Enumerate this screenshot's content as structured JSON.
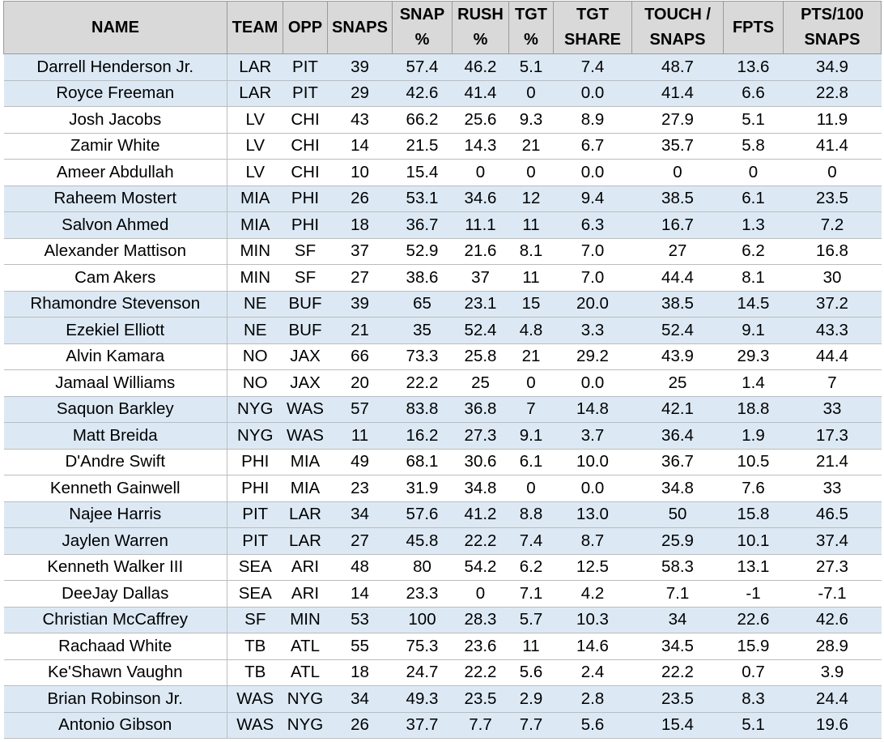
{
  "headers": [
    {
      "l1": "NAME",
      "l2": ""
    },
    {
      "l1": "TEAM",
      "l2": ""
    },
    {
      "l1": "OPP",
      "l2": ""
    },
    {
      "l1": "SNAPS",
      "l2": ""
    },
    {
      "l1": "SNAP",
      "l2": "%"
    },
    {
      "l1": "RUSH",
      "l2": "%"
    },
    {
      "l1": "TGT",
      "l2": "%"
    },
    {
      "l1": "TGT",
      "l2": "SHARE"
    },
    {
      "l1": "TOUCH /",
      "l2": "SNAPS"
    },
    {
      "l1": "FPTS",
      "l2": ""
    },
    {
      "l1": "PTS/100",
      "l2": "SNAPS"
    }
  ],
  "rows": [
    {
      "name": "Darrell Henderson Jr.",
      "team": "LAR",
      "opp": "PIT",
      "snaps": "39",
      "snap_pct": "57.4",
      "rush_pct": "46.2",
      "tgt_pct": "5.1",
      "tgt_share": "7.4",
      "touch_snaps": "48.7",
      "fpts": "13.6",
      "pts100": "34.9",
      "shaded": true
    },
    {
      "name": "Royce Freeman",
      "team": "LAR",
      "opp": "PIT",
      "snaps": "29",
      "snap_pct": "42.6",
      "rush_pct": "41.4",
      "tgt_pct": "0",
      "tgt_share": "0.0",
      "touch_snaps": "41.4",
      "fpts": "6.6",
      "pts100": "22.8",
      "shaded": true
    },
    {
      "name": "Josh Jacobs",
      "team": "LV",
      "opp": "CHI",
      "snaps": "43",
      "snap_pct": "66.2",
      "rush_pct": "25.6",
      "tgt_pct": "9.3",
      "tgt_share": "8.9",
      "touch_snaps": "27.9",
      "fpts": "5.1",
      "pts100": "11.9",
      "shaded": false
    },
    {
      "name": "Zamir White",
      "team": "LV",
      "opp": "CHI",
      "snaps": "14",
      "snap_pct": "21.5",
      "rush_pct": "14.3",
      "tgt_pct": "21",
      "tgt_share": "6.7",
      "touch_snaps": "35.7",
      "fpts": "5.8",
      "pts100": "41.4",
      "shaded": false
    },
    {
      "name": "Ameer Abdullah",
      "team": "LV",
      "opp": "CHI",
      "snaps": "10",
      "snap_pct": "15.4",
      "rush_pct": "0",
      "tgt_pct": "0",
      "tgt_share": "0.0",
      "touch_snaps": "0",
      "fpts": "0",
      "pts100": "0",
      "shaded": false
    },
    {
      "name": "Raheem Mostert",
      "team": "MIA",
      "opp": "PHI",
      "snaps": "26",
      "snap_pct": "53.1",
      "rush_pct": "34.6",
      "tgt_pct": "12",
      "tgt_share": "9.4",
      "touch_snaps": "38.5",
      "fpts": "6.1",
      "pts100": "23.5",
      "shaded": true
    },
    {
      "name": "Salvon Ahmed",
      "team": "MIA",
      "opp": "PHI",
      "snaps": "18",
      "snap_pct": "36.7",
      "rush_pct": "11.1",
      "tgt_pct": "11",
      "tgt_share": "6.3",
      "touch_snaps": "16.7",
      "fpts": "1.3",
      "pts100": "7.2",
      "shaded": true
    },
    {
      "name": "Alexander Mattison",
      "team": "MIN",
      "opp": "SF",
      "snaps": "37",
      "snap_pct": "52.9",
      "rush_pct": "21.6",
      "tgt_pct": "8.1",
      "tgt_share": "7.0",
      "touch_snaps": "27",
      "fpts": "6.2",
      "pts100": "16.8",
      "shaded": false
    },
    {
      "name": "Cam Akers",
      "team": "MIN",
      "opp": "SF",
      "snaps": "27",
      "snap_pct": "38.6",
      "rush_pct": "37",
      "tgt_pct": "11",
      "tgt_share": "7.0",
      "touch_snaps": "44.4",
      "fpts": "8.1",
      "pts100": "30",
      "shaded": false
    },
    {
      "name": "Rhamondre Stevenson",
      "team": "NE",
      "opp": "BUF",
      "snaps": "39",
      "snap_pct": "65",
      "rush_pct": "23.1",
      "tgt_pct": "15",
      "tgt_share": "20.0",
      "touch_snaps": "38.5",
      "fpts": "14.5",
      "pts100": "37.2",
      "shaded": true
    },
    {
      "name": "Ezekiel Elliott",
      "team": "NE",
      "opp": "BUF",
      "snaps": "21",
      "snap_pct": "35",
      "rush_pct": "52.4",
      "tgt_pct": "4.8",
      "tgt_share": "3.3",
      "touch_snaps": "52.4",
      "fpts": "9.1",
      "pts100": "43.3",
      "shaded": true
    },
    {
      "name": "Alvin Kamara",
      "team": "NO",
      "opp": "JAX",
      "snaps": "66",
      "snap_pct": "73.3",
      "rush_pct": "25.8",
      "tgt_pct": "21",
      "tgt_share": "29.2",
      "touch_snaps": "43.9",
      "fpts": "29.3",
      "pts100": "44.4",
      "shaded": false
    },
    {
      "name": "Jamaal Williams",
      "team": "NO",
      "opp": "JAX",
      "snaps": "20",
      "snap_pct": "22.2",
      "rush_pct": "25",
      "tgt_pct": "0",
      "tgt_share": "0.0",
      "touch_snaps": "25",
      "fpts": "1.4",
      "pts100": "7",
      "shaded": false
    },
    {
      "name": "Saquon Barkley",
      "team": "NYG",
      "opp": "WAS",
      "snaps": "57",
      "snap_pct": "83.8",
      "rush_pct": "36.8",
      "tgt_pct": "7",
      "tgt_share": "14.8",
      "touch_snaps": "42.1",
      "fpts": "18.8",
      "pts100": "33",
      "shaded": true
    },
    {
      "name": "Matt Breida",
      "team": "NYG",
      "opp": "WAS",
      "snaps": "11",
      "snap_pct": "16.2",
      "rush_pct": "27.3",
      "tgt_pct": "9.1",
      "tgt_share": "3.7",
      "touch_snaps": "36.4",
      "fpts": "1.9",
      "pts100": "17.3",
      "shaded": true
    },
    {
      "name": "D'Andre Swift",
      "team": "PHI",
      "opp": "MIA",
      "snaps": "49",
      "snap_pct": "68.1",
      "rush_pct": "30.6",
      "tgt_pct": "6.1",
      "tgt_share": "10.0",
      "touch_snaps": "36.7",
      "fpts": "10.5",
      "pts100": "21.4",
      "shaded": false
    },
    {
      "name": "Kenneth Gainwell",
      "team": "PHI",
      "opp": "MIA",
      "snaps": "23",
      "snap_pct": "31.9",
      "rush_pct": "34.8",
      "tgt_pct": "0",
      "tgt_share": "0.0",
      "touch_snaps": "34.8",
      "fpts": "7.6",
      "pts100": "33",
      "shaded": false
    },
    {
      "name": "Najee Harris",
      "team": "PIT",
      "opp": "LAR",
      "snaps": "34",
      "snap_pct": "57.6",
      "rush_pct": "41.2",
      "tgt_pct": "8.8",
      "tgt_share": "13.0",
      "touch_snaps": "50",
      "fpts": "15.8",
      "pts100": "46.5",
      "shaded": true
    },
    {
      "name": "Jaylen Warren",
      "team": "PIT",
      "opp": "LAR",
      "snaps": "27",
      "snap_pct": "45.8",
      "rush_pct": "22.2",
      "tgt_pct": "7.4",
      "tgt_share": "8.7",
      "touch_snaps": "25.9",
      "fpts": "10.1",
      "pts100": "37.4",
      "shaded": true
    },
    {
      "name": "Kenneth Walker III",
      "team": "SEA",
      "opp": "ARI",
      "snaps": "48",
      "snap_pct": "80",
      "rush_pct": "54.2",
      "tgt_pct": "6.2",
      "tgt_share": "12.5",
      "touch_snaps": "58.3",
      "fpts": "13.1",
      "pts100": "27.3",
      "shaded": false
    },
    {
      "name": "DeeJay Dallas",
      "team": "SEA",
      "opp": "ARI",
      "snaps": "14",
      "snap_pct": "23.3",
      "rush_pct": "0",
      "tgt_pct": "7.1",
      "tgt_share": "4.2",
      "touch_snaps": "7.1",
      "fpts": "-1",
      "pts100": "-7.1",
      "shaded": false
    },
    {
      "name": "Christian McCaffrey",
      "team": "SF",
      "opp": "MIN",
      "snaps": "53",
      "snap_pct": "100",
      "rush_pct": "28.3",
      "tgt_pct": "5.7",
      "tgt_share": "10.3",
      "touch_snaps": "34",
      "fpts": "22.6",
      "pts100": "42.6",
      "shaded": true
    },
    {
      "name": "Rachaad White",
      "team": "TB",
      "opp": "ATL",
      "snaps": "55",
      "snap_pct": "75.3",
      "rush_pct": "23.6",
      "tgt_pct": "11",
      "tgt_share": "14.6",
      "touch_snaps": "34.5",
      "fpts": "15.9",
      "pts100": "28.9",
      "shaded": false
    },
    {
      "name": "Ke'Shawn Vaughn",
      "team": "TB",
      "opp": "ATL",
      "snaps": "18",
      "snap_pct": "24.7",
      "rush_pct": "22.2",
      "tgt_pct": "5.6",
      "tgt_share": "2.4",
      "touch_snaps": "22.2",
      "fpts": "0.7",
      "pts100": "3.9",
      "shaded": false
    },
    {
      "name": "Brian Robinson Jr.",
      "team": "WAS",
      "opp": "NYG",
      "snaps": "34",
      "snap_pct": "49.3",
      "rush_pct": "23.5",
      "tgt_pct": "2.9",
      "tgt_share": "2.8",
      "touch_snaps": "23.5",
      "fpts": "8.3",
      "pts100": "24.4",
      "shaded": true
    },
    {
      "name": "Antonio Gibson",
      "team": "WAS",
      "opp": "NYG",
      "snaps": "26",
      "snap_pct": "37.7",
      "rush_pct": "7.7",
      "tgt_pct": "7.7",
      "tgt_share": "5.6",
      "touch_snaps": "15.4",
      "fpts": "5.1",
      "pts100": "19.6",
      "shaded": true
    }
  ],
  "colors": {
    "header_bg": "#d9d9d9",
    "shaded_row": "#dce9f5",
    "plain_row": "#ffffff"
  }
}
